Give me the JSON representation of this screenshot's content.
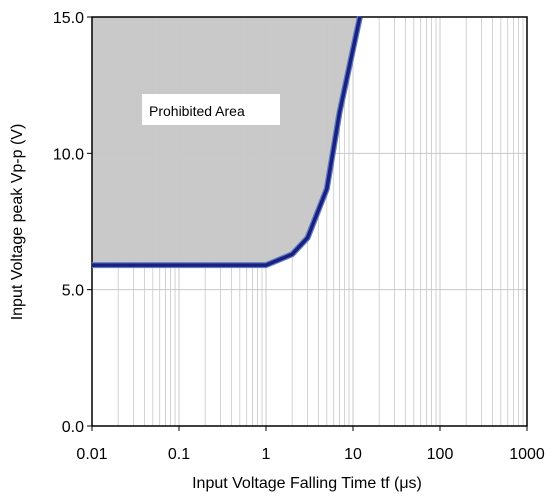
{
  "chart_data": {
    "type": "line",
    "title": "",
    "xlabel": "Input Voltage Falling Time tf (μs)",
    "ylabel": "Input Voltage peak Vp-p (V)",
    "xscale": "log",
    "xlim": [
      0.01,
      1000
    ],
    "ylim": [
      0,
      15
    ],
    "x_ticks": [
      0.01,
      0.1,
      1,
      10,
      100,
      1000
    ],
    "x_tick_labels": [
      "0.01",
      "0.1",
      "1",
      "10",
      "100",
      "1000"
    ],
    "y_ticks": [
      0,
      5,
      10,
      15
    ],
    "y_tick_labels": [
      "0.0",
      "5.0",
      "10.0",
      "15.0"
    ],
    "grid": true,
    "series": [
      {
        "x": [
          0.01,
          1,
          2,
          3,
          5,
          7,
          12
        ],
        "y": [
          5.9,
          5.9,
          6.3,
          6.9,
          8.7,
          11.5,
          15.0
        ]
      }
    ],
    "shaded_region": {
      "label": "Prohibited Area",
      "fill": "#c9c9c9"
    },
    "colors": {
      "line": "#1b1f82",
      "line_edge": "#5f7fc0",
      "grid": "#c8c8c8",
      "axis": "#000000"
    }
  }
}
